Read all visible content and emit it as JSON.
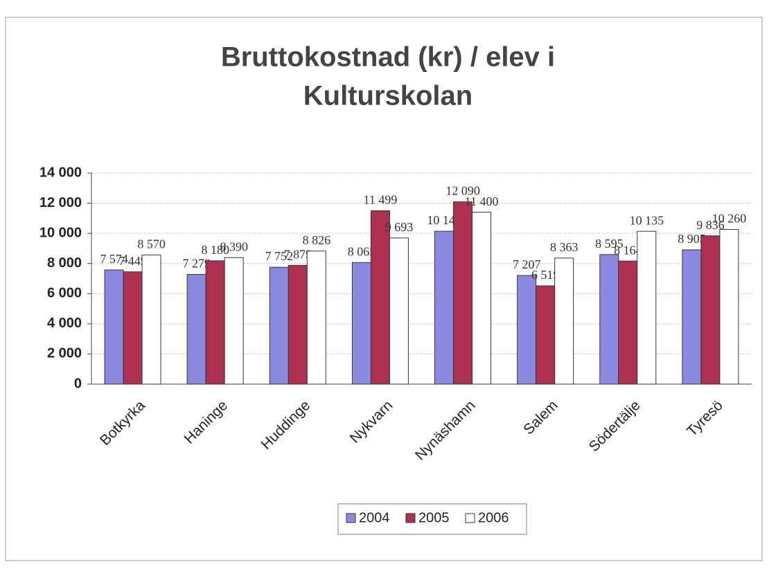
{
  "chart_data": {
    "type": "bar",
    "title": [
      "Bruttokostnad (kr) / elev i",
      "Kulturskolan"
    ],
    "categories": [
      "Botkyrka",
      "Haninge",
      "Huddinge",
      "Nykvarn",
      "Nynäshamn",
      "Salem",
      "Södertälje",
      "Tyresö"
    ],
    "series": [
      {
        "name": "2004",
        "color": "#8a8ae0",
        "values": [
          7574,
          7279,
          7752,
          8065,
          10140,
          7207,
          8595,
          8905
        ],
        "value_labels": [
          "7 574",
          "7 279",
          "7 752",
          "8 065",
          "10 140",
          "7 207",
          "8 595",
          "8 905"
        ]
      },
      {
        "name": "2005",
        "color": "#b03050",
        "values": [
          7449,
          8180,
          7879,
          11499,
          12090,
          6519,
          8164,
          9836
        ],
        "value_labels": [
          "7 449",
          "8 180",
          "7 879",
          "11 499",
          "12 090",
          "6 519",
          "8 164",
          "9 836"
        ]
      },
      {
        "name": "2006",
        "color": "#ffffff",
        "values": [
          8570,
          8390,
          8826,
          9693,
          11400,
          8363,
          10135,
          10260
        ],
        "value_labels": [
          "8 570",
          "8 390",
          "8 826",
          "9 693",
          "11 400",
          "8 363",
          "10 135",
          "10 260"
        ]
      }
    ],
    "ylim": [
      0,
      14000
    ],
    "yticks": [
      0,
      {
        "value": 2000,
        "label": "2 000"
      },
      {
        "value": 4000,
        "label": "4 000"
      },
      {
        "value": 6000,
        "label": "6 000"
      },
      {
        "value": 8000,
        "label": "8 000"
      },
      {
        "value": 10000,
        "label": "10 000"
      },
      {
        "value": 12000,
        "label": "12 000"
      },
      {
        "value": 14000,
        "label": "14 000"
      }
    ],
    "grid": true,
    "legend": "bottom"
  }
}
